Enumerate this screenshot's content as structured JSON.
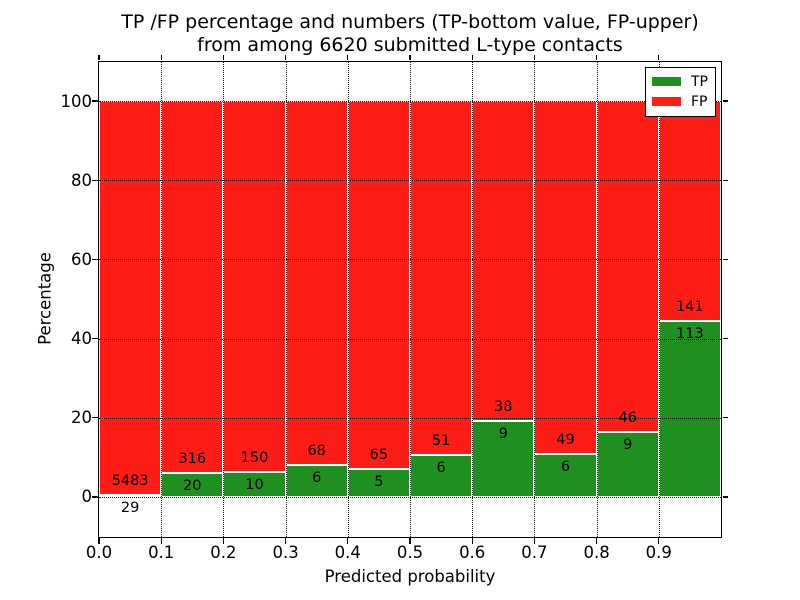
{
  "figure": {
    "title_line1": "TP /FP percentage and numbers (TP-bottom value, FP-upper)",
    "title_line2": "from among 6620 submitted L-type contacts",
    "xlabel": "Predicted probability",
    "ylabel": "Percentage"
  },
  "legend": {
    "entries": [
      {
        "label": "TP",
        "color": "#1f9020"
      },
      {
        "label": "FP",
        "color": "#fd1d15"
      }
    ]
  },
  "colors": {
    "tp_green": "#1f9020",
    "fp_red": "#fd1d15",
    "bar_edge": "#ffffff",
    "axis": "#000000",
    "grid": "#111111",
    "background": "#ffffff"
  },
  "chart_data": {
    "type": "bar",
    "stacked": true,
    "normalized_to_percent": true,
    "title": "TP /FP percentage and numbers (TP-bottom value, FP-upper) from among 6620 submitted L-type contacts",
    "xlabel": "Predicted probability",
    "ylabel": "Percentage",
    "xlim": [
      0.0,
      1.0
    ],
    "ylim": [
      -10,
      110
    ],
    "grid": "dotted, both axes, drawn over bars",
    "legend_position": "upper right",
    "bin_width": 0.1,
    "bin_starts": [
      0.0,
      0.1,
      0.2,
      0.3,
      0.4,
      0.5,
      0.6,
      0.7,
      0.8,
      0.9
    ],
    "xtick_labels": [
      "0.0",
      "0.1",
      "0.2",
      "0.3",
      "0.4",
      "0.5",
      "0.6",
      "0.7",
      "0.8",
      "0.9"
    ],
    "yticks": [
      0,
      20,
      40,
      60,
      80,
      100
    ],
    "total_contacts": 6620,
    "series": [
      {
        "name": "TP",
        "color": "#1f9020",
        "counts": [
          29,
          20,
          10,
          6,
          5,
          6,
          9,
          6,
          9,
          113
        ]
      },
      {
        "name": "FP",
        "color": "#fd1d15",
        "counts": [
          5483,
          316,
          150,
          68,
          65,
          51,
          38,
          49,
          46,
          141
        ]
      }
    ],
    "tp_percent_per_bin": [
      0.53,
      5.95,
      6.25,
      8.11,
      7.14,
      10.53,
      19.15,
      10.91,
      16.36,
      44.49
    ]
  }
}
